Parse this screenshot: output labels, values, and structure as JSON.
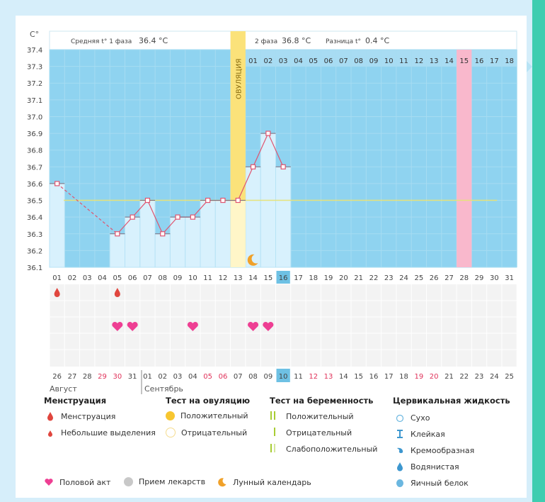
{
  "header": {
    "unit": "C°",
    "phase1_label": "Средняя t° 1 фаза",
    "phase1_value": "36.4 °C",
    "phase2_label": "2 фаза",
    "phase2_value": "36.8 °C",
    "diff_label": "Разница t°",
    "diff_value": "0.4 °C",
    "ovulation_label": "ОВУЛЯЦИЯ"
  },
  "colors": {
    "bg_blue": "#8fd3f0",
    "bar_light": "#d8f1fd",
    "ovulation": "#fbe27a",
    "highlight_pink": "#f9b8cc",
    "line": "#e0546f",
    "coverline": "#e6e27a",
    "current_day": "#6ec1e4"
  },
  "chart_data": {
    "type": "line",
    "title": "",
    "ylabel": "C°",
    "ylim": [
      36.1,
      37.4
    ],
    "y_ticks": [
      "36.1",
      "36.2",
      "36.3",
      "36.4",
      "36.5",
      "36.6",
      "36.7",
      "36.8",
      "36.9",
      "37.0",
      "37.1",
      "37.2",
      "37.3",
      "37.4"
    ],
    "cycle_days": [
      "01",
      "02",
      "03",
      "04",
      "05",
      "06",
      "07",
      "08",
      "09",
      "10",
      "11",
      "12",
      "13",
      "14",
      "15",
      "16",
      "17",
      "18",
      "19",
      "20",
      "21",
      "22",
      "23",
      "24",
      "25",
      "26",
      "27",
      "28",
      "29",
      "30",
      "31"
    ],
    "dpo_labels": [
      "01",
      "02",
      "03",
      "04",
      "05",
      "06",
      "07",
      "08",
      "09",
      "10",
      "11",
      "12",
      "13",
      "14",
      "15",
      "16",
      "17",
      "18"
    ],
    "series": [
      {
        "name": "Базальная температура",
        "points": [
          {
            "day": 1,
            "value": 36.6
          },
          {
            "day": 5,
            "value": 36.3
          },
          {
            "day": 6,
            "value": 36.4
          },
          {
            "day": 7,
            "value": 36.5
          },
          {
            "day": 8,
            "value": 36.3
          },
          {
            "day": 9,
            "value": 36.4
          },
          {
            "day": 10,
            "value": 36.4
          },
          {
            "day": 11,
            "value": 36.5
          },
          {
            "day": 12,
            "value": 36.5
          },
          {
            "day": 13,
            "value": 36.5
          },
          {
            "day": 14,
            "value": 36.7
          },
          {
            "day": 15,
            "value": 36.9
          },
          {
            "day": 16,
            "value": 36.7
          }
        ]
      }
    ],
    "dashed_gap": [
      1,
      5
    ],
    "coverline": 36.5,
    "ovulation_day": 13,
    "current_day": 16,
    "highlight_day": 28,
    "moon_day": 14,
    "menstruation_days": [
      1,
      5
    ],
    "intercourse_days": [
      5,
      6,
      10,
      14,
      15
    ],
    "calendar_dates": [
      {
        "d": "26"
      },
      {
        "d": "27"
      },
      {
        "d": "28"
      },
      {
        "d": "29",
        "red": true
      },
      {
        "d": "30",
        "red": true
      },
      {
        "d": "31"
      },
      {
        "d": "01"
      },
      {
        "d": "02"
      },
      {
        "d": "03"
      },
      {
        "d": "04"
      },
      {
        "d": "05",
        "red": true
      },
      {
        "d": "06",
        "red": true
      },
      {
        "d": "07"
      },
      {
        "d": "08"
      },
      {
        "d": "09"
      },
      {
        "d": "10"
      },
      {
        "d": "11"
      },
      {
        "d": "12",
        "red": true
      },
      {
        "d": "13",
        "red": true
      },
      {
        "d": "14"
      },
      {
        "d": "15"
      },
      {
        "d": "16"
      },
      {
        "d": "17"
      },
      {
        "d": "18"
      },
      {
        "d": "19",
        "red": true
      },
      {
        "d": "20",
        "red": true
      },
      {
        "d": "21"
      },
      {
        "d": "22"
      },
      {
        "d": "23"
      },
      {
        "d": "24"
      },
      {
        "d": "25"
      }
    ],
    "month1": "Август",
    "month2": "Сентябрь"
  },
  "legend": {
    "menstr_title": "Менструация",
    "menstr_items": [
      "Менструация",
      "Небольшие выделения"
    ],
    "ovtest_title": "Тест на овуляцию",
    "ovtest_items": [
      "Положительный",
      "Отрицательный"
    ],
    "pregtest_title": "Тест на беременность",
    "pregtest_items": [
      "Положительный",
      "Отрицательный",
      "Слабоположительный"
    ],
    "cerv_title": "Цервикальная жидкость",
    "cerv_items": [
      "Сухо",
      "Клейкая",
      "Кремообразная",
      "Водянистая",
      "Яичный белок"
    ],
    "bottom_items": [
      "Половой акт",
      "Прием лекарств",
      "Лунный календарь"
    ]
  }
}
